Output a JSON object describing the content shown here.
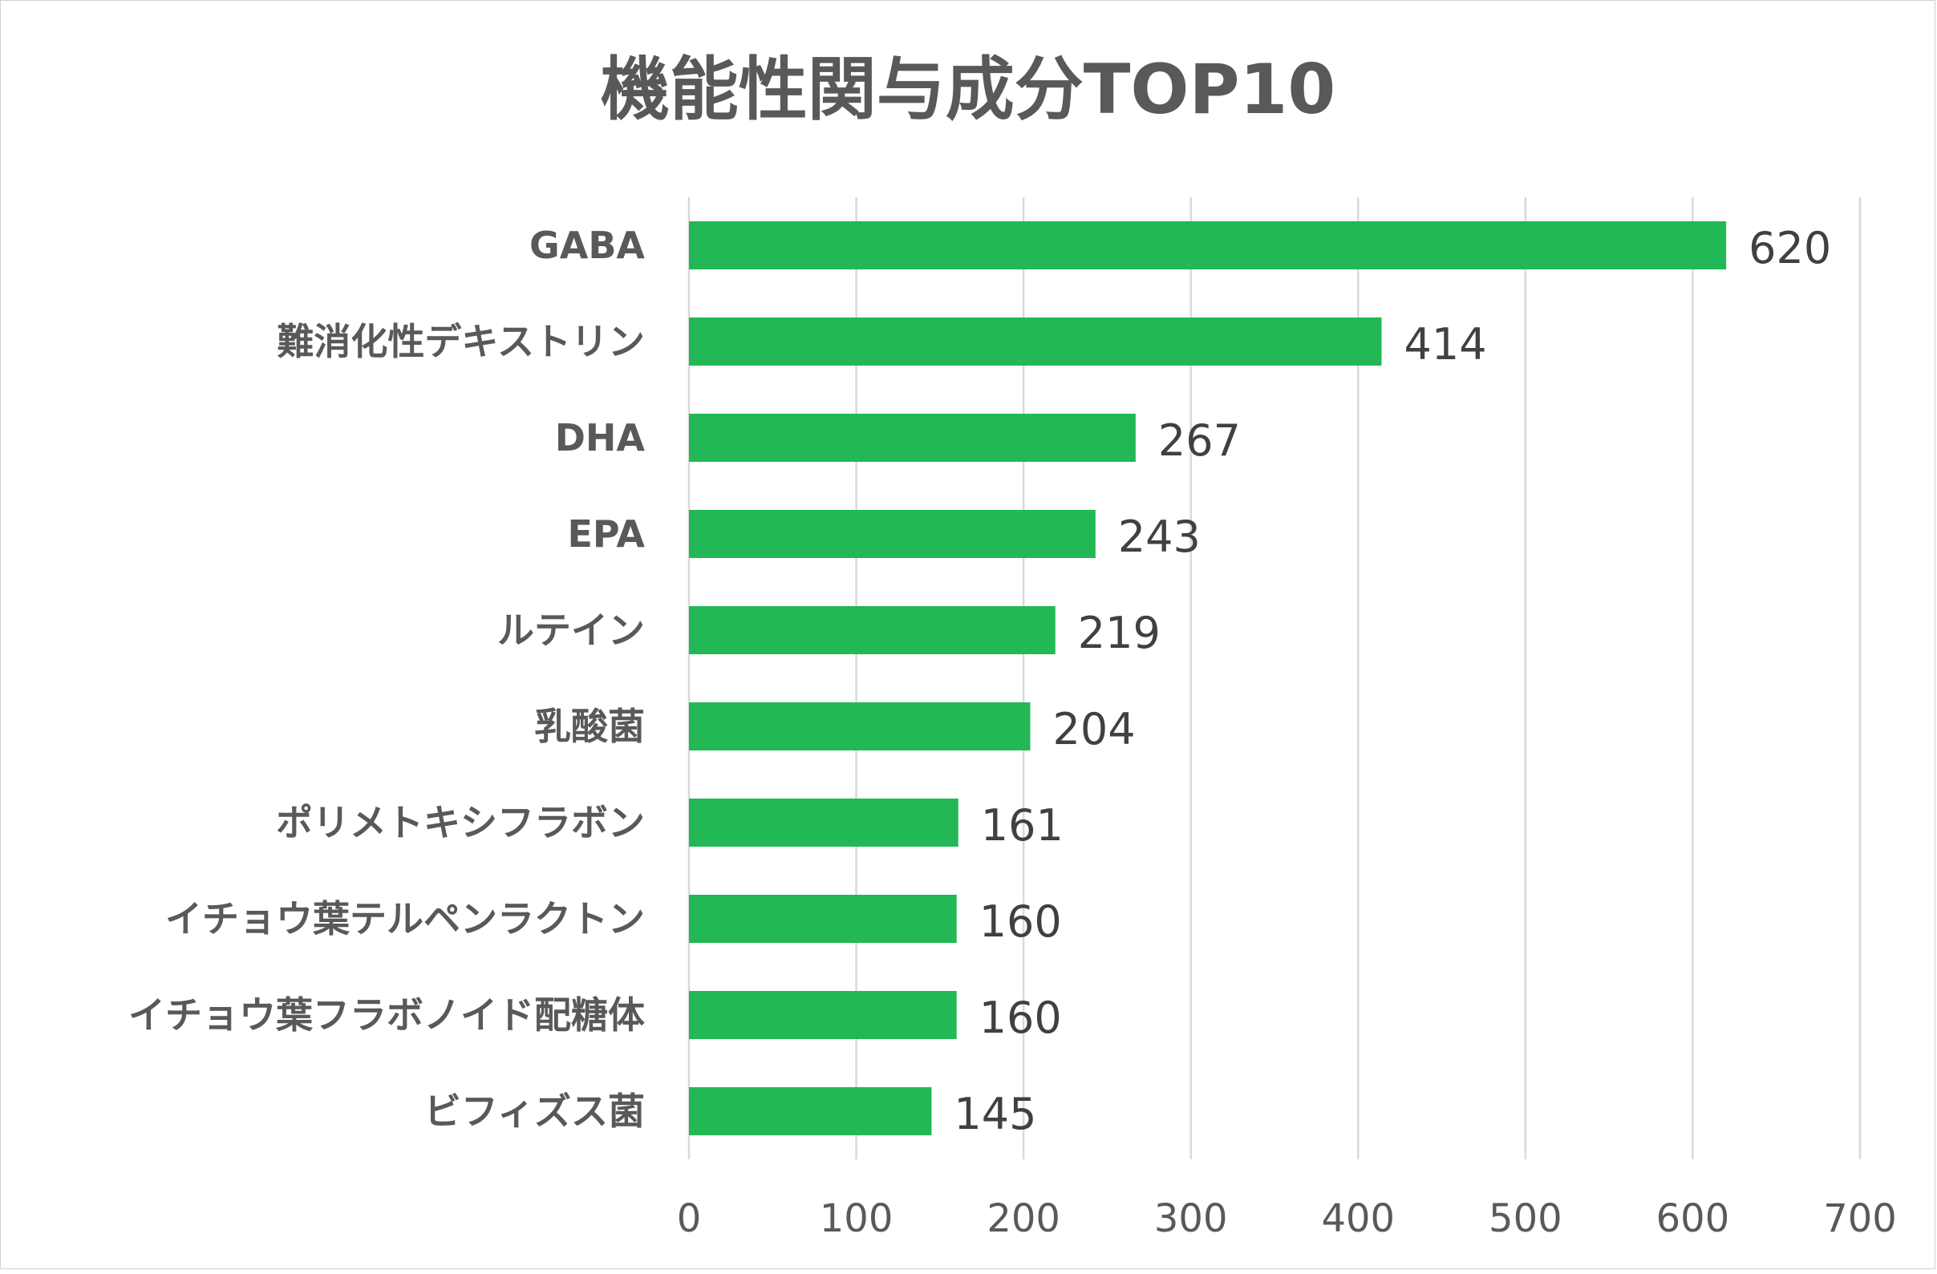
{
  "chart_data": {
    "type": "bar",
    "orientation": "horizontal",
    "title": "機能性関与成分TOP10",
    "xlabel": "",
    "ylabel": "",
    "xlim": [
      0,
      700
    ],
    "xticks": [
      "0",
      "100",
      "200",
      "300",
      "400",
      "500",
      "600",
      "700"
    ],
    "grid": true,
    "legend": "none",
    "color": "#22b855",
    "categories": [
      "GABA",
      "難消化性デキストリン",
      "DHA",
      "EPA",
      "ルテイン",
      "乳酸菌",
      "ポリメトキシフラボン",
      "イチョウ葉テルペンラクトン",
      "イチョウ葉フラボノイド配糖体",
      "ビフィズス菌"
    ],
    "values": [
      620,
      414,
      267,
      243,
      219,
      204,
      161,
      160,
      160,
      145
    ],
    "data_labels": [
      "620",
      "414",
      "267",
      "243",
      "219",
      "204",
      "161",
      "160",
      "160",
      "145"
    ]
  }
}
